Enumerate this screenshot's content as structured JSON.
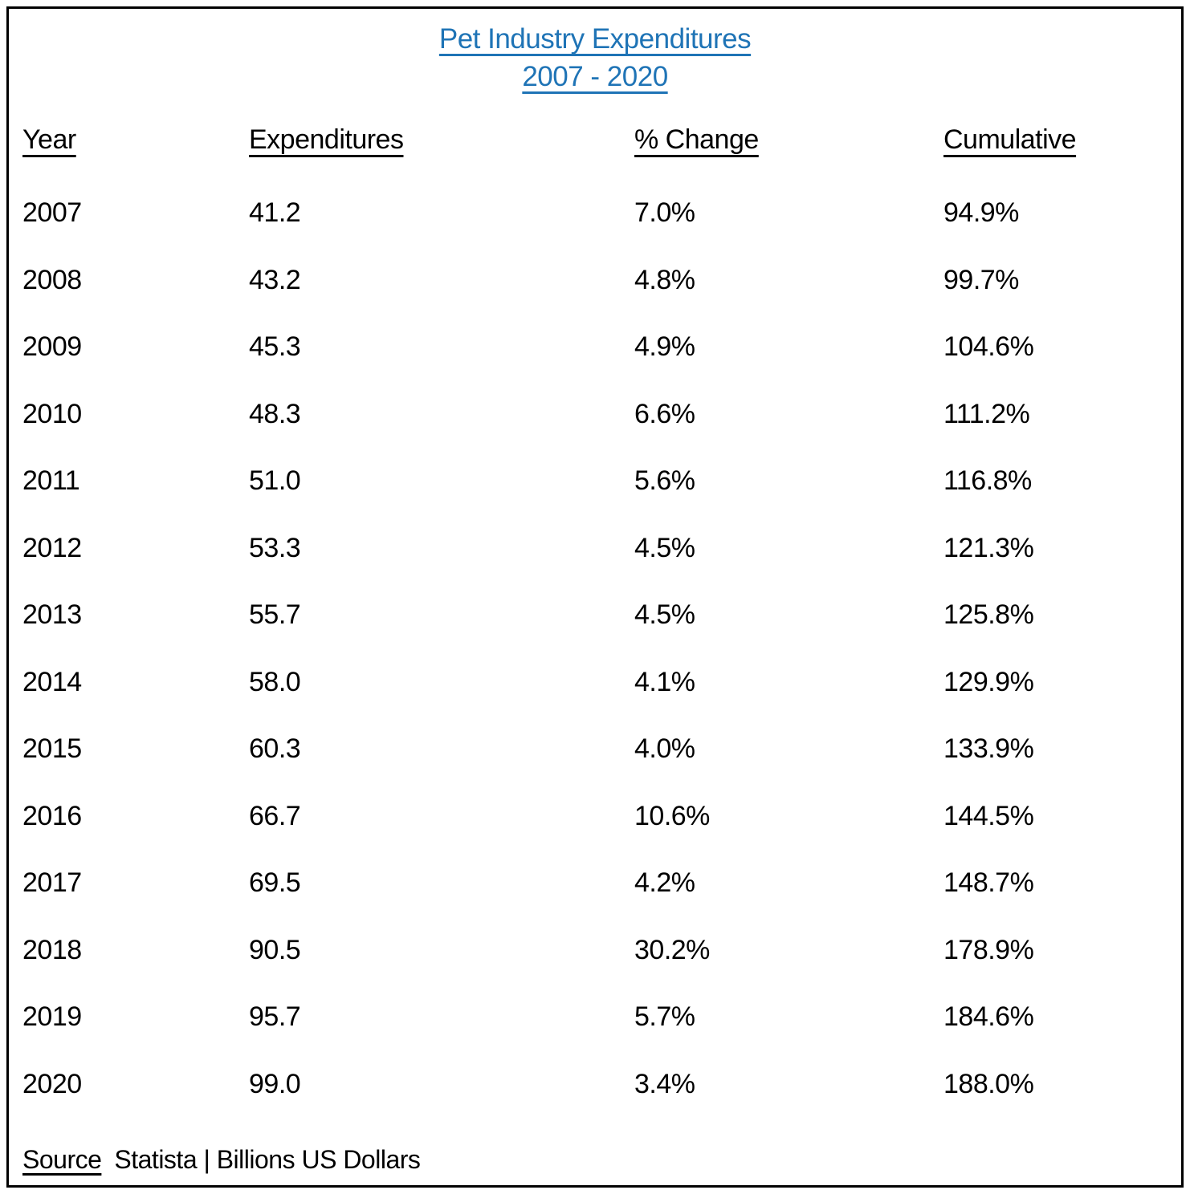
{
  "title": {
    "line1": "Pet Industry Expenditures",
    "line2": "2007 - 2020"
  },
  "columns": [
    "Year",
    "Expenditures",
    "% Change",
    "Cumulative"
  ],
  "table": {
    "rows": [
      [
        "2007",
        "41.2",
        "7.0%",
        "94.9%"
      ],
      [
        "2008",
        "43.2",
        "4.8%",
        "99.7%"
      ],
      [
        "2009",
        "45.3",
        "4.9%",
        "104.6%"
      ],
      [
        "2010",
        "48.3",
        "6.6%",
        "111.2%"
      ],
      [
        "2011",
        "51.0",
        "5.6%",
        "116.8%"
      ],
      [
        "2012",
        "53.3",
        "4.5%",
        "121.3%"
      ],
      [
        "2013",
        "55.7",
        "4.5%",
        "125.8%"
      ],
      [
        "2014",
        "58.0",
        "4.1%",
        "129.9%"
      ],
      [
        "2015",
        "60.3",
        "4.0%",
        "133.9%"
      ],
      [
        "2016",
        "66.7",
        "10.6%",
        "144.5%"
      ],
      [
        "2017",
        "69.5",
        "4.2%",
        "148.7%"
      ],
      [
        "2018",
        "90.5",
        "30.2%",
        "178.9%"
      ],
      [
        "2019",
        "95.7",
        "5.7%",
        "184.6%"
      ],
      [
        "2020",
        "99.0",
        "3.4%",
        "188.0%"
      ]
    ]
  },
  "footer": {
    "source_label": "Source",
    "source_text": "Statista | Billions US Dollars"
  },
  "colors": {
    "title_blue": "#1F74B6",
    "text": "#000000",
    "border": "#000000",
    "background": "#FFFFFF"
  },
  "chart_data": {
    "type": "table",
    "title": "Pet Industry Expenditures 2007 - 2020",
    "categories": [
      2007,
      2008,
      2009,
      2010,
      2011,
      2012,
      2013,
      2014,
      2015,
      2016,
      2017,
      2018,
      2019,
      2020
    ],
    "series": [
      {
        "name": "Expenditures",
        "values": [
          41.2,
          43.2,
          45.3,
          48.3,
          51.0,
          53.3,
          55.7,
          58.0,
          60.3,
          66.7,
          69.5,
          90.5,
          95.7,
          99.0
        ]
      },
      {
        "name": "% Change",
        "values": [
          7.0,
          4.8,
          4.9,
          6.6,
          5.6,
          4.5,
          4.5,
          4.1,
          4.0,
          10.6,
          4.2,
          30.2,
          5.7,
          3.4
        ]
      },
      {
        "name": "Cumulative",
        "values": [
          94.9,
          99.7,
          104.6,
          111.2,
          116.8,
          121.3,
          125.8,
          129.9,
          133.9,
          144.5,
          148.7,
          178.9,
          184.6,
          188.0
        ]
      }
    ],
    "units": "Billions US Dollars",
    "source": "Statista"
  }
}
